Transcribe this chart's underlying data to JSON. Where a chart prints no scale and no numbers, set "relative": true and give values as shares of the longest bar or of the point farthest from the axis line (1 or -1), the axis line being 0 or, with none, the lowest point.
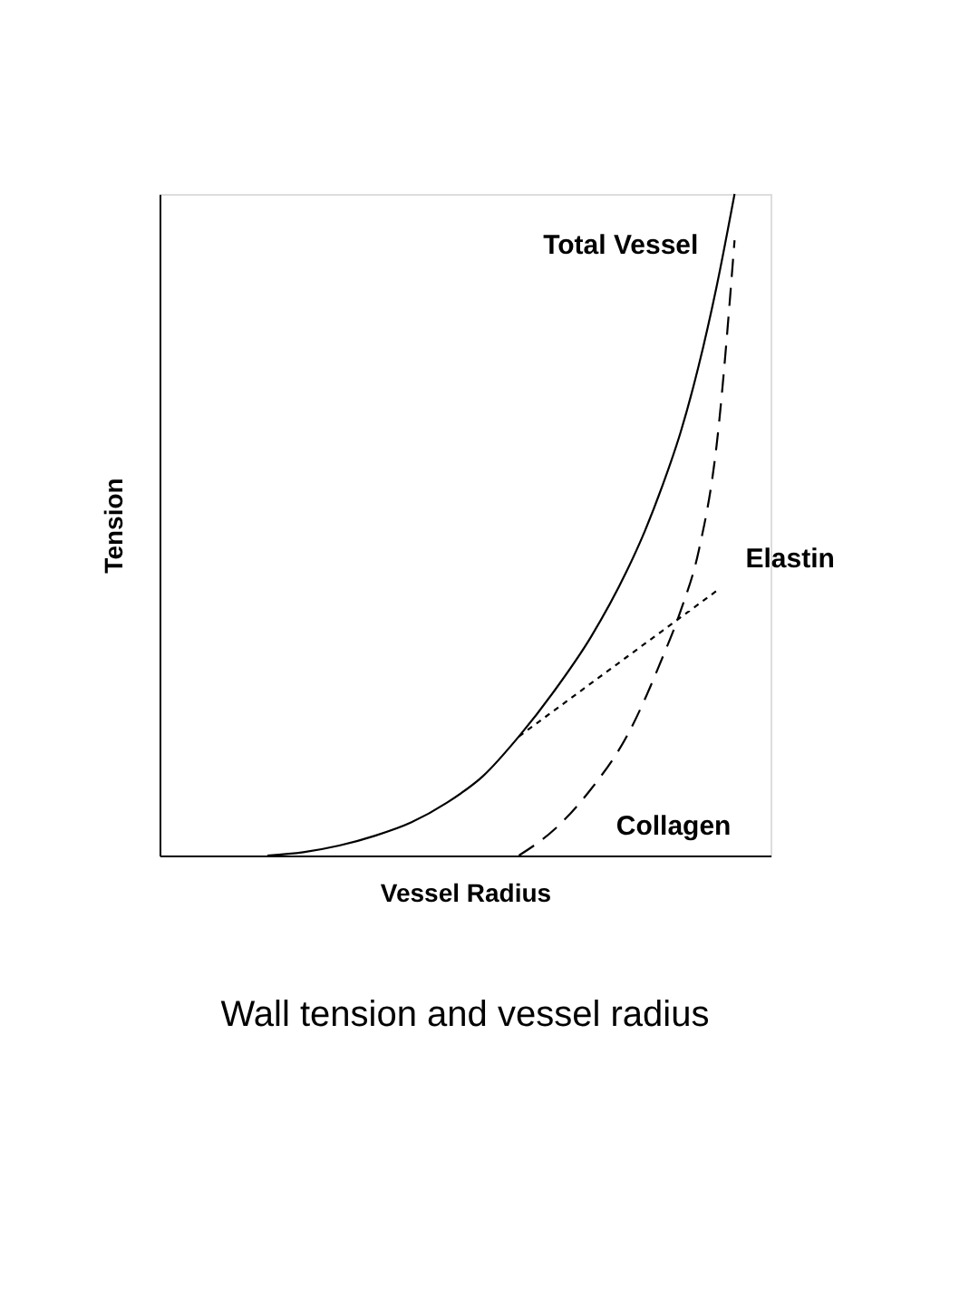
{
  "chart_data": {
    "type": "line",
    "relative": true,
    "title": "Wall tension and vessel radius",
    "xlabel": "Vessel Radius",
    "ylabel": "Tension",
    "categories": [
      null,
      null,
      null,
      null,
      null,
      null,
      null,
      null,
      null,
      null,
      null,
      null,
      null,
      null,
      null,
      null,
      null,
      null,
      null,
      null,
      null,
      null,
      null,
      null,
      null,
      null,
      null,
      null,
      null,
      null,
      null,
      null,
      null,
      null,
      null
    ],
    "series": [
      {
        "name": "Total Vessel",
        "color": "#000000",
        "line_style": "solid",
        "values": [
          null,
          null,
          null,
          null,
          null,
          null,
          0.0,
          null,
          0.005,
          null,
          0.015,
          null,
          0.03,
          null,
          0.05,
          null,
          0.08,
          null,
          0.12,
          null,
          0.18,
          null,
          0.25,
          null,
          0.33,
          null,
          0.43,
          0.49,
          0.56,
          0.64,
          0.74,
          0.86,
          1.0,
          null,
          null
        ]
      },
      {
        "name": "Elastin",
        "color": "#000000",
        "line_style": "dotted",
        "values": [
          null,
          null,
          null,
          null,
          null,
          null,
          null,
          null,
          null,
          null,
          null,
          null,
          null,
          null,
          null,
          null,
          null,
          null,
          null,
          null,
          0.18,
          null,
          0.22,
          null,
          0.26,
          null,
          0.3,
          null,
          0.34,
          null,
          0.38,
          0.4,
          null,
          null,
          null
        ]
      },
      {
        "name": "Collagen",
        "color": "#000000",
        "line_style": "dashed",
        "values": [
          null,
          null,
          null,
          null,
          null,
          null,
          null,
          null,
          null,
          null,
          null,
          null,
          null,
          null,
          null,
          null,
          null,
          null,
          null,
          null,
          0.0,
          null,
          0.04,
          null,
          0.1,
          null,
          0.18,
          null,
          0.3,
          0.37,
          0.46,
          0.62,
          0.93,
          null,
          null
        ]
      }
    ],
    "grid": false,
    "legend": false,
    "marker": "none"
  }
}
